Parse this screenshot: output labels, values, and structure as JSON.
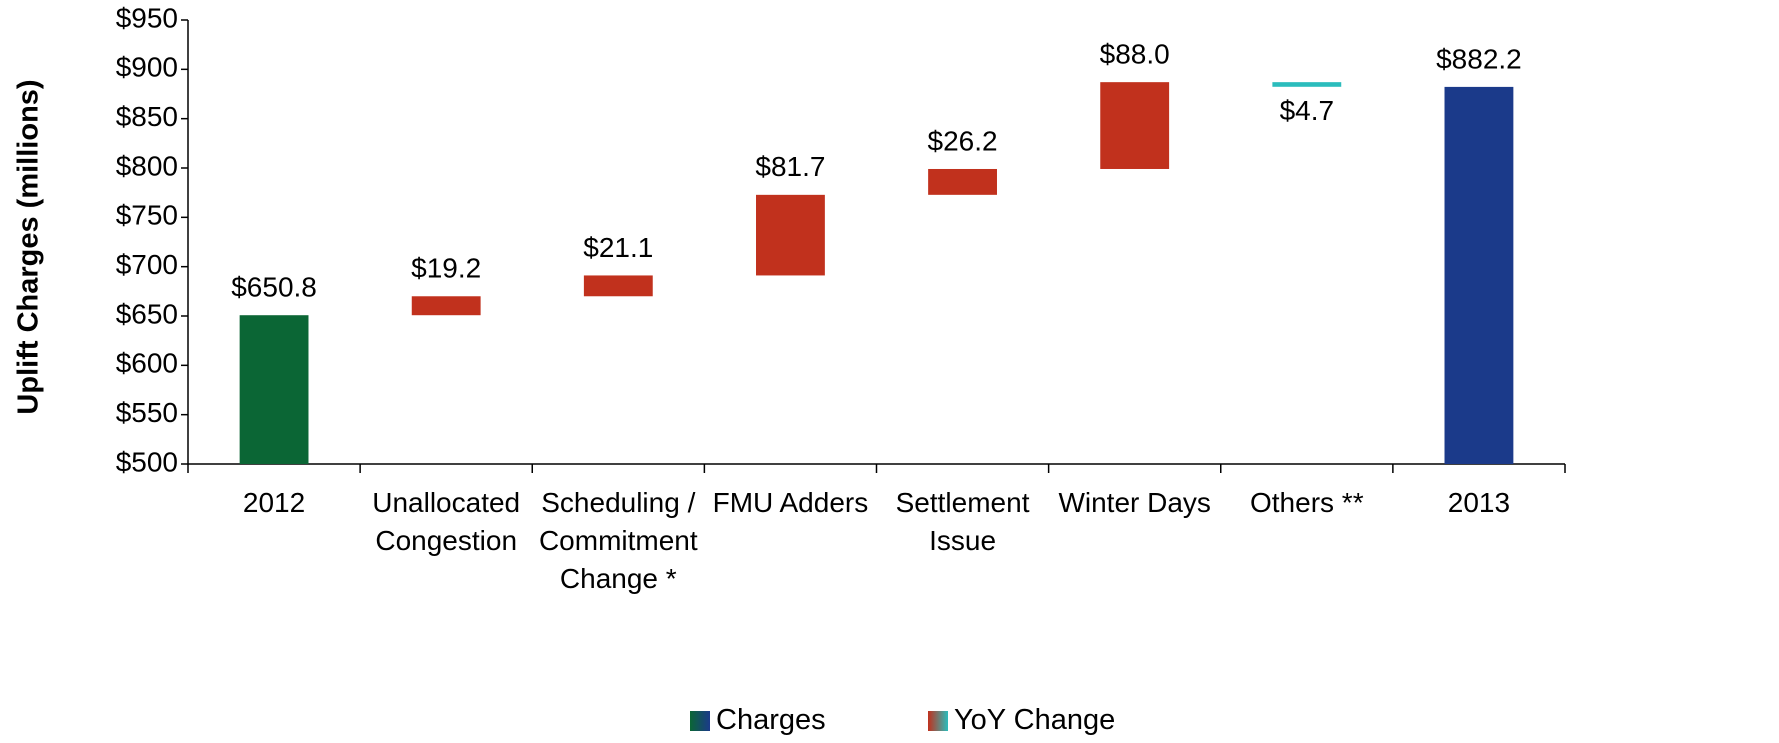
{
  "chart_data": {
    "type": "waterfall",
    "y_label": "Uplift Charges (millions)",
    "categories": [
      "2012",
      "Unallocated Congestion",
      "Scheduling / Commitment Change *",
      "FMU Adders",
      "Settlement Issue",
      "Winter Days",
      "Others **",
      "2013"
    ],
    "measures": [
      "total",
      "relative",
      "relative",
      "relative",
      "relative",
      "relative",
      "relative",
      "total"
    ],
    "values": [
      650.8,
      19.2,
      21.1,
      81.7,
      26.2,
      88.0,
      -4.7,
      882.2
    ],
    "value_labels": [
      "$650.8",
      "$19.2",
      "$21.1",
      "$81.7",
      "$26.2",
      "$88.0",
      "$4.7",
      "$882.2"
    ],
    "colors": [
      "#0b6635",
      "#c1311d",
      "#c1311d",
      "#c1311d",
      "#c1311d",
      "#c1311d",
      "#2bbcbc",
      "#1b3a8a"
    ],
    "legend": [
      "Charges",
      "YoY Change"
    ],
    "ylim": [
      500,
      950
    ],
    "yticks": [
      {
        "value": 500,
        "label": "$500"
      },
      {
        "value": 550,
        "label": "$550"
      },
      {
        "value": 600,
        "label": "$600"
      },
      {
        "value": 650,
        "label": "$650"
      },
      {
        "value": 700,
        "label": "$700"
      },
      {
        "value": 750,
        "label": "$750"
      },
      {
        "value": 800,
        "label": "$800"
      },
      {
        "value": 850,
        "label": "$850"
      },
      {
        "value": 900,
        "label": "$900"
      },
      {
        "value": 950,
        "label": "$950"
      }
    ]
  }
}
